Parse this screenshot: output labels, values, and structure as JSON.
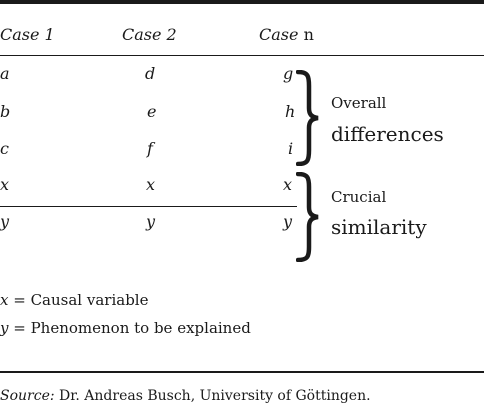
{
  "table": {
    "headers": [
      {
        "label": "Case 1",
        "label_suffix": ""
      },
      {
        "label": "Case 2",
        "label_suffix": ""
      },
      {
        "label": "Case",
        "label_suffix": "n"
      }
    ],
    "rows": [
      [
        "a",
        "d",
        "g"
      ],
      [
        "b",
        "e",
        "h"
      ],
      [
        "c",
        "f",
        "i"
      ],
      [
        "x",
        "x",
        "x"
      ],
      [
        "y",
        "y",
        "y"
      ]
    ],
    "groups": [
      {
        "line1": "Overall",
        "line2": "differences"
      },
      {
        "line1": "Crucial",
        "line2": "similarity"
      }
    ]
  },
  "legend": [
    {
      "symbol": "x",
      "text": " = Causal variable"
    },
    {
      "symbol": "y",
      "text": " = Phenomenon to be explained"
    }
  ],
  "source": {
    "label": "Source:",
    "text": " Dr. Andreas Busch, University of Göttingen."
  }
}
